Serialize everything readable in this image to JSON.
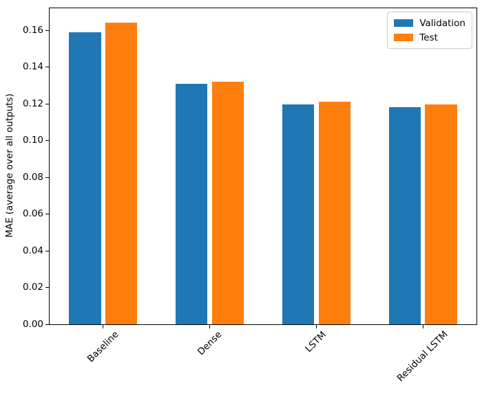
{
  "figure": {
    "background": "#ffffff"
  },
  "chart_data": {
    "type": "bar",
    "title": "",
    "xlabel": "",
    "ylabel": "MAE (average over all outputs)",
    "categories": [
      "Baseline",
      "Dense",
      "LSTM",
      "Residual LSTM"
    ],
    "series": [
      {
        "name": "Validation",
        "color": "#1f77b4",
        "values": [
          0.159,
          0.131,
          0.1195,
          0.118
        ]
      },
      {
        "name": "Test",
        "color": "#ff7f0e",
        "values": [
          0.164,
          0.132,
          0.121,
          0.1195
        ]
      }
    ],
    "bar_width": 0.3,
    "bar_offsets": [
      -0.17,
      0.17
    ],
    "xlim": [
      -0.502,
      3.502
    ],
    "ylim": [
      0,
      0.172
    ],
    "yticks": [
      0,
      0.02,
      0.04,
      0.06,
      0.08,
      0.1,
      0.12,
      0.14,
      0.16
    ],
    "ytick_decimals": 2,
    "xtick_rotation_deg": 45,
    "grid": false,
    "legend": {
      "position": "upper right",
      "entries": [
        "Validation",
        "Test"
      ]
    },
    "axis_color": "#000000",
    "text_color": "#000000"
  }
}
